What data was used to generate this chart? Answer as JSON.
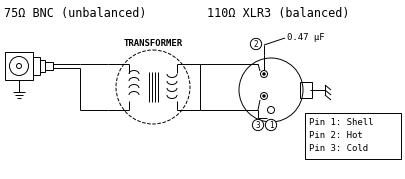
{
  "title_left": "75Ω BNC (unbalanced)",
  "title_right": "110Ω XLR3 (balanced)",
  "transformer_label": "TRANSFORMER",
  "capacitor_label": "0.47 μF",
  "pin_labels": [
    "Pin 1: Shell",
    "Pin 2: Hot",
    "Pin 3: Cold"
  ],
  "bg_color": "#ffffff",
  "line_color": "#000000",
  "font_size_title": 8.5,
  "font_size_label": 6.5,
  "font_size_transformer": 6.5,
  "font_size_pin": 6.5
}
